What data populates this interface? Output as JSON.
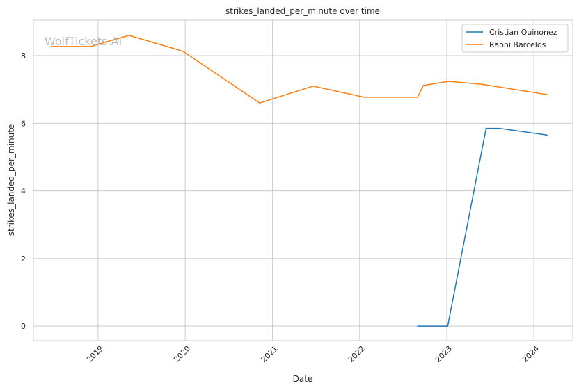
{
  "chart_data": {
    "type": "line",
    "title": "strikes_landed_per_minute over time",
    "xlabel": "Date",
    "ylabel": "strikes_landed_per_minute",
    "watermark": "WolfTickets.AI",
    "x_ticks": [
      "2019",
      "2020",
      "2021",
      "2022",
      "2023",
      "2024"
    ],
    "y_ticks": [
      "0",
      "2",
      "4",
      "6",
      "8"
    ],
    "xlim": [
      "2018-04-05",
      "2024-06-12"
    ],
    "ylim": [
      -0.43,
      9.05
    ],
    "grid": true,
    "legend_position": "top-right",
    "series": [
      {
        "name": "Cristian Quinonez",
        "color": "#1f77b4",
        "points": [
          {
            "x": "2022-09-01",
            "y": 0.0
          },
          {
            "x": "2023-01-05",
            "y": 0.0
          },
          {
            "x": "2023-06-15",
            "y": 5.85
          },
          {
            "x": "2023-08-10",
            "y": 5.85
          },
          {
            "x": "2024-02-25",
            "y": 5.65
          }
        ]
      },
      {
        "name": "Raoni Barcelos",
        "color": "#ff7f0e",
        "points": [
          {
            "x": "2018-06-20",
            "y": 8.27
          },
          {
            "x": "2018-12-01",
            "y": 8.27
          },
          {
            "x": "2019-05-10",
            "y": 8.6
          },
          {
            "x": "2019-12-22",
            "y": 8.13
          },
          {
            "x": "2020-11-08",
            "y": 6.6
          },
          {
            "x": "2021-06-20",
            "y": 7.1
          },
          {
            "x": "2022-01-20",
            "y": 6.77
          },
          {
            "x": "2022-09-01",
            "y": 6.77
          },
          {
            "x": "2022-09-25",
            "y": 7.12
          },
          {
            "x": "2023-01-10",
            "y": 7.24
          },
          {
            "x": "2023-06-01",
            "y": 7.15
          },
          {
            "x": "2023-08-20",
            "y": 7.06
          },
          {
            "x": "2024-02-25",
            "y": 6.85
          }
        ]
      }
    ]
  }
}
